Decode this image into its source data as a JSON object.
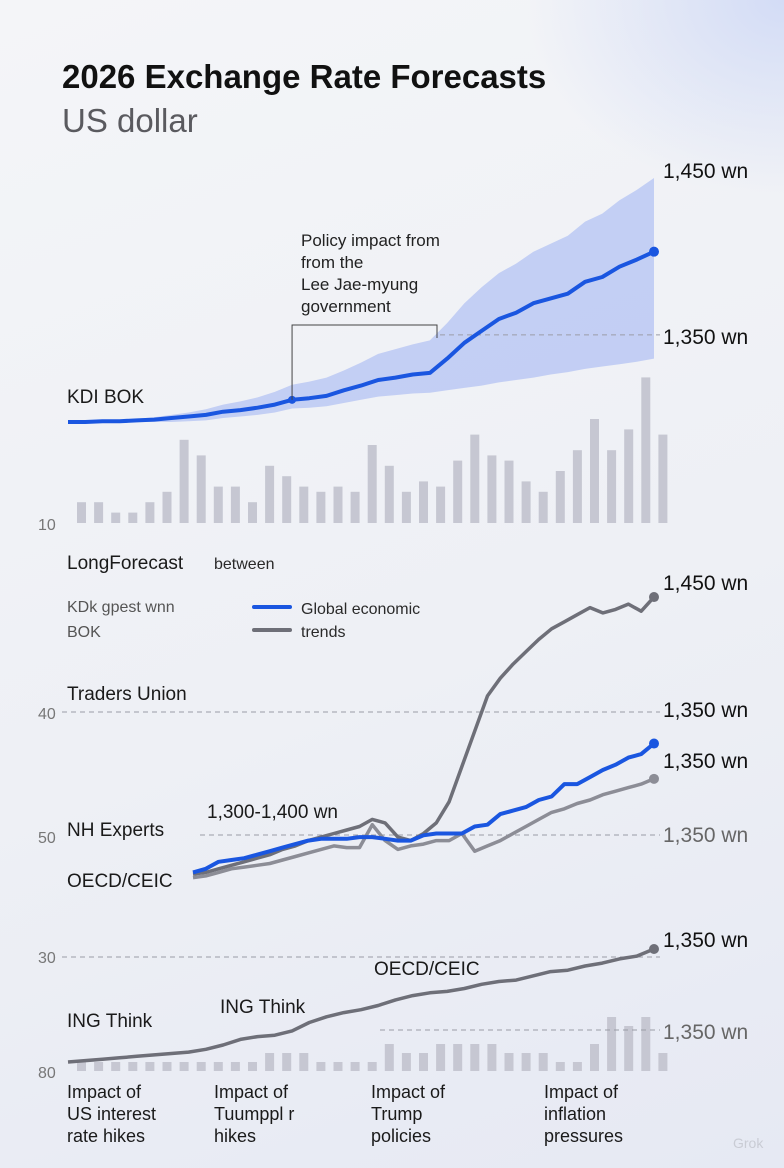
{
  "title": "2026 Exchange Rate Forecasts",
  "subtitle": "US dollar",
  "colors": {
    "blue": "#1a56e0",
    "grey": "#6e6f78",
    "band": "#aabcf2",
    "bars": "#c6c7d2"
  },
  "panel1": {
    "series_label": "KDI BOK",
    "axis_tick": "10",
    "annotation": [
      "Policy impact from",
      "from the",
      "Lee Jae-myung",
      "government"
    ],
    "end_label": "1,450 wn",
    "ref_label": "1,350 wn"
  },
  "panel2": {
    "heading": "LongForecast",
    "heading_note": "between",
    "legend_left": [
      "KDk gpest wnn",
      "BOK"
    ],
    "legend": [
      {
        "name": "Global economic",
        "color": "#1a56e0"
      },
      {
        "name": "trends",
        "color": "#6e6f78"
      }
    ],
    "series_labels": [
      "Traders Union",
      "NH Experts",
      "OECD/CEIC"
    ],
    "ticks": [
      "40",
      "50"
    ],
    "range_label": "1,300-1,400 wn",
    "value_labels": [
      "1,450 wn",
      "1,350 wn",
      "1,350 wn",
      "1,350 wn"
    ]
  },
  "panel3": {
    "series_labels": [
      "ING Think",
      "ING Think",
      "OECD/CEIC"
    ],
    "ticks": [
      "30",
      "80"
    ],
    "value_labels": [
      "1,350 wn",
      "1,350 wn"
    ]
  },
  "categories": [
    [
      "Impact of",
      "US interest",
      "rate hikes"
    ],
    [
      "Impact of",
      "Tuumppl r",
      "hikes"
    ],
    [
      "Impact of",
      "Trump",
      "policies"
    ],
    [
      "Impact of",
      "inflation",
      "pressures"
    ]
  ],
  "watermark": "Grok",
  "chart_data": [
    {
      "type": "line",
      "title": "2026 Exchange Rate Forecasts",
      "subtitle": "US dollar",
      "x": [
        1,
        2,
        3,
        4,
        5,
        6,
        7,
        8,
        9,
        10,
        11,
        12,
        13,
        14,
        15,
        16,
        17,
        18,
        19,
        20,
        21,
        22,
        23,
        24,
        25,
        26,
        27,
        28,
        29,
        30,
        31,
        32,
        33,
        34,
        35
      ],
      "series": [
        {
          "name": "KDI BOK",
          "values": [
            1240,
            1240,
            1241,
            1241,
            1242,
            1243,
            1245,
            1247,
            1249,
            1253,
            1255,
            1258,
            1262,
            1268,
            1270,
            1273,
            1280,
            1286,
            1293,
            1296,
            1300,
            1302,
            1320,
            1340,
            1355,
            1370,
            1378,
            1390,
            1396,
            1402,
            1417,
            1423,
            1436,
            1445,
            1455
          ],
          "band_low": [
            1240,
            1240,
            1240,
            1240,
            1240,
            1240,
            1240,
            1241,
            1242,
            1245,
            1247,
            1249,
            1252,
            1257,
            1258,
            1260,
            1264,
            1268,
            1272,
            1274,
            1276,
            1277,
            1280,
            1283,
            1286,
            1290,
            1293,
            1296,
            1300,
            1303,
            1307,
            1310,
            1313,
            1316,
            1320
          ],
          "band_high": [
            1240,
            1241,
            1242,
            1243,
            1244,
            1246,
            1249,
            1252,
            1256,
            1262,
            1266,
            1271,
            1278,
            1287,
            1291,
            1296,
            1305,
            1315,
            1326,
            1332,
            1338,
            1343,
            1365,
            1390,
            1410,
            1428,
            1440,
            1455,
            1465,
            1475,
            1493,
            1503,
            1520,
            1533,
            1548
          ]
        }
      ],
      "reference_line": 1350,
      "bars": [
        4,
        4,
        2,
        2,
        4,
        6,
        16,
        13,
        7,
        7,
        4,
        11,
        9,
        7,
        6,
        7,
        6,
        15,
        11,
        6,
        8,
        7,
        12,
        17,
        13,
        12,
        8,
        6,
        10,
        14,
        20,
        14,
        18,
        28,
        17
      ]
    },
    {
      "type": "line",
      "legend": [
        "Global economic",
        "trends"
      ],
      "x": [
        1,
        2,
        3,
        4,
        5,
        6,
        7,
        8,
        9,
        10,
        11,
        12,
        13,
        14,
        15,
        16,
        17,
        18,
        19,
        20,
        21,
        22,
        23,
        24,
        25,
        26,
        27,
        28,
        29,
        30,
        31,
        32,
        33,
        34,
        35,
        36,
        37
      ],
      "series": [
        {
          "name": "Global economic",
          "values": [
            1300,
            1302,
            1306,
            1307,
            1308,
            1310,
            1312,
            1314,
            1316,
            1318,
            1319,
            1319,
            1319,
            1320,
            1320,
            1319,
            1318,
            1318,
            1321,
            1322,
            1322,
            1322,
            1326,
            1327,
            1333,
            1335,
            1337,
            1341,
            1343,
            1350,
            1350,
            1354,
            1358,
            1361,
            1365,
            1367,
            1373
          ]
        },
        {
          "name": "trends",
          "values": [
            1297,
            1298,
            1300,
            1302,
            1303,
            1304,
            1305,
            1307,
            1309,
            1311,
            1313,
            1315,
            1314,
            1314,
            1327,
            1318,
            1313,
            1315,
            1316,
            1318,
            1318,
            1322,
            1312,
            1315,
            1318,
            1322,
            1326,
            1330,
            1334,
            1336,
            1339,
            1341,
            1344,
            1346,
            1348,
            1350,
            1353
          ]
        },
        {
          "name": "trends (upper)",
          "values": [
            1299,
            1300,
            1302,
            1304,
            1306,
            1308,
            1310,
            1313,
            1315,
            1318,
            1320,
            1322,
            1324,
            1326,
            1330,
            1328,
            1320,
            1318,
            1322,
            1328,
            1340,
            1360,
            1380,
            1400,
            1410,
            1418,
            1425,
            1432,
            1438,
            1442,
            1446,
            1450,
            1447,
            1449,
            1452,
            1448,
            1456
          ]
        }
      ],
      "reference_lines": [
        1350,
        1400
      ]
    },
    {
      "type": "line",
      "x": [
        1,
        2,
        3,
        4,
        5,
        6,
        7,
        8,
        9,
        10,
        11,
        12,
        13,
        14,
        15,
        16,
        17,
        18,
        19,
        20,
        21,
        22,
        23,
        24,
        25,
        26,
        27,
        28,
        29,
        30,
        31,
        32,
        33,
        34,
        35
      ],
      "series": [
        {
          "name": "ING Think",
          "values": [
            1200,
            1201,
            1202,
            1203,
            1204,
            1205,
            1206,
            1207,
            1209,
            1212,
            1216,
            1218,
            1219,
            1222,
            1228,
            1232,
            1235,
            1237,
            1240,
            1244,
            1247,
            1249,
            1250,
            1252,
            1255,
            1257,
            1258,
            1261,
            1264,
            1265,
            1268,
            1270,
            1273,
            1275,
            1280
          ]
        }
      ],
      "reference_lines": [
        1350,
        1300
      ],
      "bars": [
        1,
        1,
        1,
        1,
        1,
        1,
        1,
        1,
        1,
        1,
        1,
        2,
        2,
        2,
        1,
        1,
        1,
        1,
        3,
        2,
        2,
        3,
        3,
        3,
        3,
        2,
        2,
        2,
        1,
        1,
        3,
        6,
        5,
        6,
        2
      ]
    }
  ]
}
